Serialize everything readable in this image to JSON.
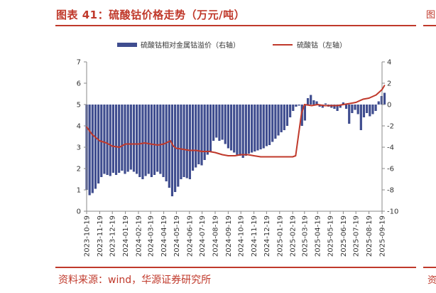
{
  "header": {
    "title": "图表 41：硫酸钴价格走势（万元/吨）"
  },
  "footer": {
    "source": "资料来源：wind，华源证券研究所"
  },
  "edge": {
    "mark_top": "图",
    "mark_bottom": "资"
  },
  "colors": {
    "bar": "#3f4d8f",
    "line": "#c0392b",
    "accent": "#c0392b"
  },
  "chart_data": {
    "type": "bar+line",
    "legend_placement": "top",
    "x_tick_labels": [
      "2023-10-19",
      "2023-11-19",
      "2023-12-19",
      "2024-01-19",
      "2024-02-19",
      "2024-03-19",
      "2024-04-19",
      "2024-05-19",
      "2024-06-19",
      "2024-07-19",
      "2024-08-19",
      "2024-09-19",
      "2024-10-19",
      "2024-11-19",
      "2024-12-19",
      "2025-01-19",
      "2025-02-19",
      "2025-03-19",
      "2025-04-19",
      "2025-05-19",
      "2025-06-19",
      "2025-07-19",
      "2025-08-19",
      "2025-09-19"
    ],
    "left_axis": {
      "ylim": [
        0,
        7
      ],
      "ticks": [
        "0",
        "1",
        "2",
        "3",
        "4",
        "5",
        "6",
        "7"
      ]
    },
    "right_axis": {
      "ylim": [
        -10,
        4
      ],
      "ticks": [
        "-10",
        "-8",
        "-6",
        "-4",
        "-2",
        "0",
        "2",
        "4"
      ]
    },
    "series": [
      {
        "name": "硫酸钴相对金属钴溢价（右轴）",
        "type": "bar",
        "axis": "right",
        "points": [
          [
            "2023-10-19",
            -8.0
          ],
          [
            "2023-10-26",
            -8.5
          ],
          [
            "2023-11-02",
            -8.3
          ],
          [
            "2023-11-09",
            -7.9
          ],
          [
            "2023-11-16",
            -7.4
          ],
          [
            "2023-11-23",
            -6.8
          ],
          [
            "2023-11-30",
            -6.5
          ],
          [
            "2023-12-07",
            -6.6
          ],
          [
            "2023-12-14",
            -6.7
          ],
          [
            "2023-12-21",
            -6.4
          ],
          [
            "2023-12-28",
            -6.6
          ],
          [
            "2024-01-04",
            -6.4
          ],
          [
            "2024-01-11",
            -6.2
          ],
          [
            "2024-01-18",
            -6.5
          ],
          [
            "2024-01-25",
            -6.3
          ],
          [
            "2024-02-01",
            -6.1
          ],
          [
            "2024-02-08",
            -6.3
          ],
          [
            "2024-02-15",
            -6.5
          ],
          [
            "2024-02-22",
            -6.8
          ],
          [
            "2024-02-29",
            -7.0
          ],
          [
            "2024-03-07",
            -6.7
          ],
          [
            "2024-03-14",
            -6.5
          ],
          [
            "2024-03-21",
            -6.8
          ],
          [
            "2024-03-28",
            -6.6
          ],
          [
            "2024-04-04",
            -6.3
          ],
          [
            "2024-04-11",
            -6.5
          ],
          [
            "2024-04-18",
            -6.8
          ],
          [
            "2024-04-25",
            -7.2
          ],
          [
            "2024-05-02",
            -7.8
          ],
          [
            "2024-05-09",
            -8.6
          ],
          [
            "2024-05-16",
            -8.2
          ],
          [
            "2024-05-23",
            -7.7
          ],
          [
            "2024-05-30",
            -7.0
          ],
          [
            "2024-06-06",
            -6.8
          ],
          [
            "2024-06-13",
            -6.9
          ],
          [
            "2024-06-20",
            -7.0
          ],
          [
            "2024-06-27",
            -6.2
          ],
          [
            "2024-07-04",
            -5.9
          ],
          [
            "2024-07-11",
            -5.6
          ],
          [
            "2024-07-18",
            -5.7
          ],
          [
            "2024-07-25",
            -5.2
          ],
          [
            "2024-08-01",
            -4.7
          ],
          [
            "2024-08-08",
            -4.4
          ],
          [
            "2024-08-15",
            -3.4
          ],
          [
            "2024-08-22",
            -3.1
          ],
          [
            "2024-08-29",
            -3.4
          ],
          [
            "2024-09-05",
            -3.3
          ],
          [
            "2024-09-12",
            -3.7
          ],
          [
            "2024-09-19",
            -4.1
          ],
          [
            "2024-09-26",
            -4.3
          ],
          [
            "2024-10-03",
            -4.5
          ],
          [
            "2024-10-10",
            -4.7
          ],
          [
            "2024-10-17",
            -4.8
          ],
          [
            "2024-10-24",
            -5.0
          ],
          [
            "2024-10-31",
            -4.8
          ],
          [
            "2024-11-07",
            -4.6
          ],
          [
            "2024-11-14",
            -4.5
          ],
          [
            "2024-11-21",
            -4.4
          ],
          [
            "2024-11-28",
            -4.3
          ],
          [
            "2024-12-05",
            -4.2
          ],
          [
            "2024-12-12",
            -4.1
          ],
          [
            "2024-12-19",
            -3.9
          ],
          [
            "2024-12-26",
            -3.8
          ],
          [
            "2025-01-02",
            -3.5
          ],
          [
            "2025-01-09",
            -3.2
          ],
          [
            "2025-01-16",
            -2.9
          ],
          [
            "2025-01-23",
            -2.6
          ],
          [
            "2025-01-30",
            -2.4
          ],
          [
            "2025-02-06",
            -2.0
          ],
          [
            "2025-02-13",
            -1.2
          ],
          [
            "2025-02-20",
            -0.6
          ],
          [
            "2025-02-27",
            -0.2
          ],
          [
            "2025-03-06",
            -0.1
          ],
          [
            "2025-03-13",
            -2.0
          ],
          [
            "2025-03-20",
            -1.5
          ],
          [
            "2025-03-27",
            0.6
          ],
          [
            "2025-04-03",
            0.9
          ],
          [
            "2025-04-10",
            0.4
          ],
          [
            "2025-04-17",
            0.3
          ],
          [
            "2025-04-24",
            -0.2
          ],
          [
            "2025-05-01",
            -0.3
          ],
          [
            "2025-05-08",
            0.1
          ],
          [
            "2025-05-15",
            -0.2
          ],
          [
            "2025-05-22",
            -0.3
          ],
          [
            "2025-05-29",
            -0.4
          ],
          [
            "2025-06-05",
            -0.6
          ],
          [
            "2025-06-12",
            -0.3
          ],
          [
            "2025-06-19",
            0.2
          ],
          [
            "2025-06-26",
            -0.4
          ],
          [
            "2025-07-03",
            -1.8
          ],
          [
            "2025-07-10",
            -0.8
          ],
          [
            "2025-07-17",
            -0.5
          ],
          [
            "2025-07-24",
            -0.9
          ],
          [
            "2025-07-31",
            -2.4
          ],
          [
            "2025-08-07",
            -1.2
          ],
          [
            "2025-08-14",
            -0.8
          ],
          [
            "2025-08-21",
            -1.1
          ],
          [
            "2025-08-28",
            -0.9
          ],
          [
            "2025-09-04",
            -0.6
          ],
          [
            "2025-09-11",
            0.3
          ],
          [
            "2025-09-18",
            0.8
          ],
          [
            "2025-09-25",
            1.1
          ]
        ]
      },
      {
        "name": "硫酸钴（左轴）",
        "type": "line",
        "axis": "left",
        "points": [
          [
            "2023-10-19",
            3.95
          ],
          [
            "2023-11-01",
            3.6
          ],
          [
            "2023-11-19",
            3.3
          ],
          [
            "2023-12-05",
            3.2
          ],
          [
            "2023-12-19",
            3.05
          ],
          [
            "2024-01-05",
            3.0
          ],
          [
            "2024-01-19",
            3.15
          ],
          [
            "2024-02-05",
            3.15
          ],
          [
            "2024-02-19",
            3.15
          ],
          [
            "2024-03-05",
            3.2
          ],
          [
            "2024-03-19",
            3.15
          ],
          [
            "2024-04-05",
            3.1
          ],
          [
            "2024-04-19",
            3.15
          ],
          [
            "2024-05-05",
            3.3
          ],
          [
            "2024-05-12",
            3.05
          ],
          [
            "2024-05-19",
            2.95
          ],
          [
            "2024-06-05",
            2.9
          ],
          [
            "2024-06-19",
            2.85
          ],
          [
            "2024-07-05",
            2.85
          ],
          [
            "2024-07-19",
            2.8
          ],
          [
            "2024-08-05",
            2.8
          ],
          [
            "2024-08-19",
            2.75
          ],
          [
            "2024-09-05",
            2.65
          ],
          [
            "2024-09-19",
            2.6
          ],
          [
            "2024-10-05",
            2.6
          ],
          [
            "2024-10-19",
            2.65
          ],
          [
            "2024-11-05",
            2.65
          ],
          [
            "2024-11-19",
            2.6
          ],
          [
            "2024-12-05",
            2.55
          ],
          [
            "2024-12-19",
            2.55
          ],
          [
            "2025-01-05",
            2.55
          ],
          [
            "2025-01-19",
            2.55
          ],
          [
            "2025-02-05",
            2.55
          ],
          [
            "2025-02-19",
            2.55
          ],
          [
            "2025-02-26",
            2.6
          ],
          [
            "2025-03-05",
            3.6
          ],
          [
            "2025-03-12",
            4.6
          ],
          [
            "2025-03-19",
            5.0
          ],
          [
            "2025-04-05",
            4.95
          ],
          [
            "2025-04-19",
            5.0
          ],
          [
            "2025-05-05",
            4.95
          ],
          [
            "2025-05-19",
            4.95
          ],
          [
            "2025-06-05",
            4.95
          ],
          [
            "2025-06-19",
            5.0
          ],
          [
            "2025-07-05",
            5.05
          ],
          [
            "2025-07-19",
            5.1
          ],
          [
            "2025-08-05",
            5.25
          ],
          [
            "2025-08-19",
            5.3
          ],
          [
            "2025-09-05",
            5.45
          ],
          [
            "2025-09-19",
            5.7
          ],
          [
            "2025-09-25",
            5.9
          ]
        ]
      }
    ]
  }
}
